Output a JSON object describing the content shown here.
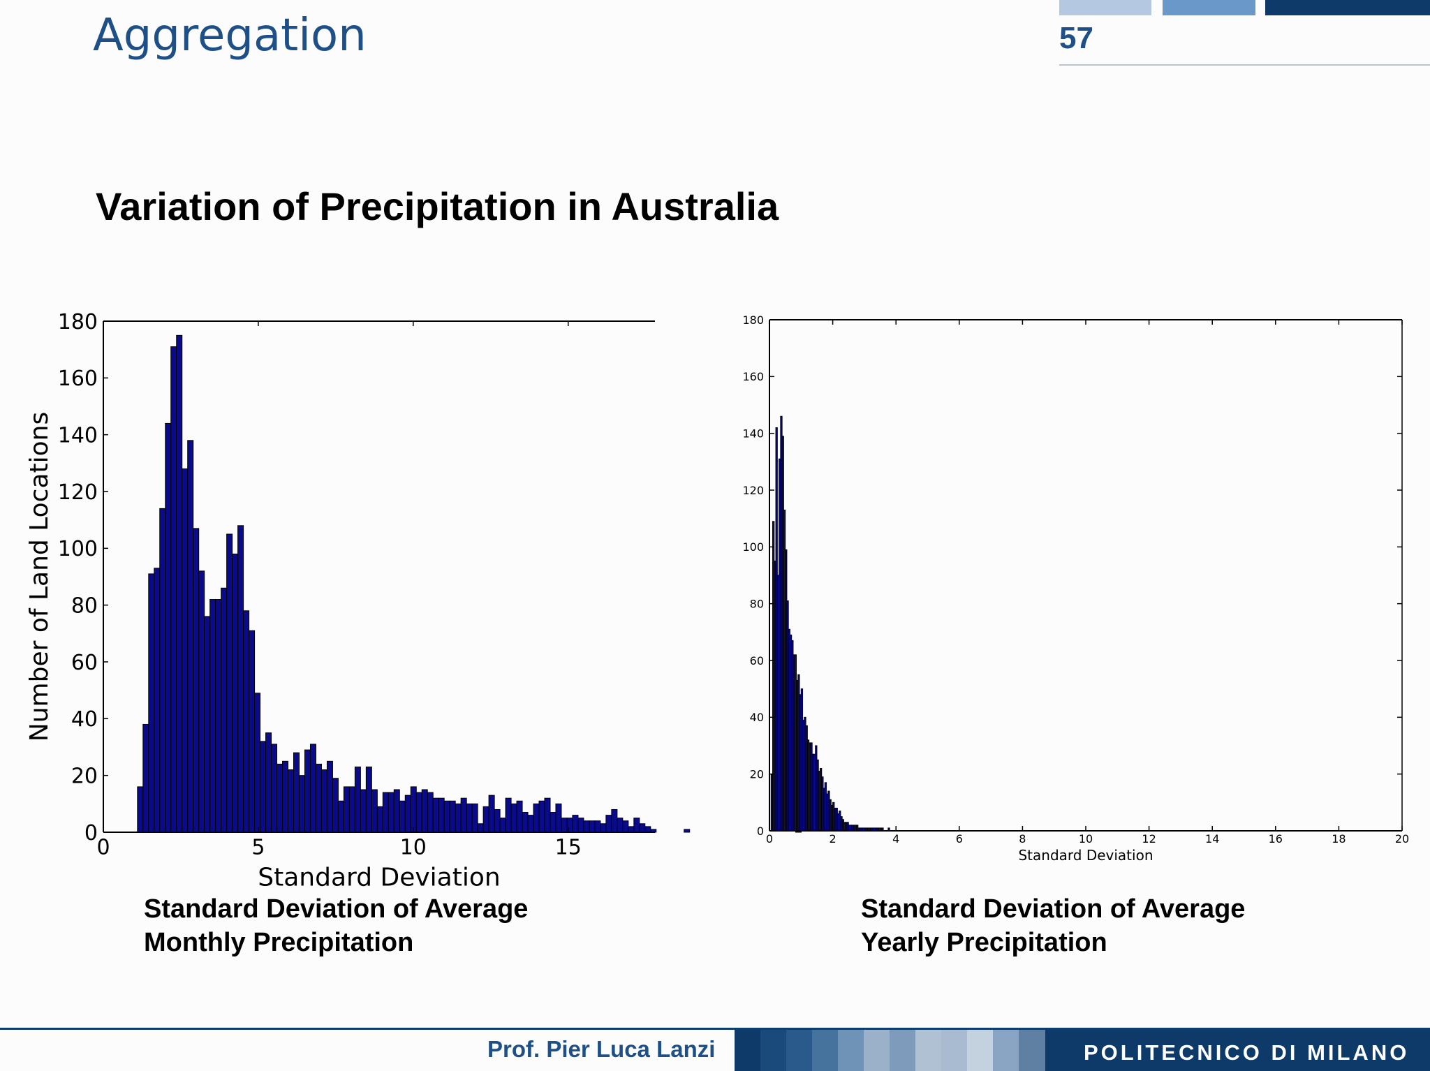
{
  "header": {
    "title": "Aggregation",
    "page_number": "57",
    "bar_colors": [
      "#b4c8e1",
      "#6a98c8",
      "#0d3a69"
    ]
  },
  "subtitle": "Variation of Precipitation in Australia",
  "captions": {
    "left": [
      "Standard Deviation of Average",
      "Monthly Precipitation"
    ],
    "right": [
      "Standard Deviation of Average",
      "Yearly Precipitation"
    ]
  },
  "footer": {
    "author": "Prof. Pier Luca Lanzi",
    "logo": "POLITECNICO DI MILANO",
    "strip_colors": [
      "#0d3a69",
      "#1a4a7c",
      "#2a5a8b",
      "#46729e",
      "#6f93b7",
      "#9bb1c9",
      "#7f9bbb",
      "#b0c1d3",
      "#a8bbd0",
      "#c4d1de",
      "#8aa5c3",
      "#5f7fa3"
    ]
  },
  "colors": {
    "bar_fill": "#0a0a8c",
    "bar_stroke": "#000000"
  },
  "chart_data": [
    {
      "type": "bar",
      "xlabel": "Standard Deviation",
      "ylabel": "Number of Land Locations",
      "xlim": [
        0,
        17.8
      ],
      "ylim": [
        0,
        180
      ],
      "xticks": [
        0,
        5,
        10,
        15
      ],
      "yticks": [
        0,
        20,
        40,
        60,
        80,
        100,
        120,
        140,
        160,
        180
      ],
      "bin_start": 1.1,
      "bin_width": 0.18,
      "values": [
        16,
        38,
        91,
        93,
        114,
        144,
        171,
        175,
        128,
        138,
        107,
        92,
        76,
        82,
        82,
        86,
        105,
        98,
        108,
        78,
        71,
        49,
        32,
        35,
        31,
        24,
        25,
        22,
        28,
        20,
        29,
        31,
        24,
        22,
        25,
        19,
        11,
        16,
        16,
        23,
        15,
        23,
        15,
        9,
        14,
        14,
        15,
        11,
        13,
        16,
        14,
        15,
        14,
        12,
        12,
        11,
        11,
        10,
        12,
        10,
        10,
        3,
        9,
        13,
        8,
        5,
        12,
        10,
        11,
        7,
        6,
        10,
        11,
        12,
        7,
        10,
        5,
        5,
        6,
        5,
        4,
        4,
        4,
        3,
        6,
        8,
        5,
        4,
        2,
        5,
        3,
        2,
        1,
        0,
        0,
        0,
        0,
        0,
        1,
        0,
        0,
        0,
        0,
        0,
        0,
        0,
        0,
        0,
        0,
        0,
        0,
        0,
        0,
        0,
        0,
        0,
        0,
        0,
        1
      ]
    },
    {
      "type": "bar",
      "xlabel": "Standard Deviation",
      "ylabel": "",
      "xlim": [
        0,
        20
      ],
      "ylim": [
        0,
        180
      ],
      "xticks": [
        0,
        2,
        4,
        6,
        8,
        10,
        12,
        14,
        16,
        18,
        20
      ],
      "yticks": [
        0,
        20,
        40,
        60,
        80,
        100,
        120,
        140,
        160,
        180
      ],
      "bin_start": 0.05,
      "bin_width": 0.05,
      "values": [
        20,
        109,
        95,
        142,
        90,
        131,
        146,
        139,
        113,
        99,
        81,
        71,
        69,
        67,
        62,
        62,
        53,
        55,
        48,
        50,
        39,
        40,
        37,
        32,
        31,
        31,
        27,
        27,
        30,
        25,
        21,
        22,
        19,
        15,
        17,
        13,
        14,
        11,
        9,
        10,
        8,
        8,
        6,
        7,
        5,
        4,
        3,
        3,
        3,
        2,
        2,
        2,
        2,
        2,
        2,
        1,
        1,
        1,
        1,
        1,
        1,
        1,
        1,
        1,
        1,
        1,
        1,
        1,
        1,
        1,
        1,
        0,
        0,
        0,
        1
      ]
    }
  ]
}
